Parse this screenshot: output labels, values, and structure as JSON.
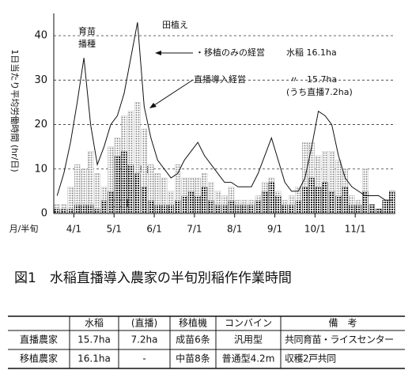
{
  "chart_data": {
    "type": "bar",
    "y_label": "1日当たり平均労働時間 (hr/日)",
    "x_label": "月/半旬",
    "categories": [
      null,
      null,
      null,
      "4/1",
      null,
      null,
      null,
      null,
      null,
      "5/1",
      null,
      null,
      null,
      null,
      null,
      "6/1",
      null,
      null,
      null,
      null,
      null,
      "7/1",
      null,
      null,
      null,
      null,
      null,
      "8/1",
      null,
      null,
      null,
      null,
      null,
      "9/1",
      null,
      null,
      null,
      null,
      null,
      "10/1",
      null,
      null,
      null,
      null,
      null,
      "11/1",
      null,
      null,
      null,
      null,
      null
    ],
    "series": [
      {
        "name": "直播",
        "color": "#222222",
        "values": [
          1,
          1,
          1,
          2,
          2,
          2,
          1,
          3,
          5,
          13,
          14,
          11,
          9,
          6,
          3,
          2,
          2,
          2,
          3,
          4,
          5,
          4,
          6,
          3,
          2,
          2,
          3,
          2,
          2,
          2,
          3,
          5,
          7,
          4,
          2,
          2,
          3,
          6,
          8,
          6,
          7,
          5,
          4,
          6,
          2,
          2,
          5,
          2,
          1,
          3,
          5
        ]
      },
      {
        "name": "移植",
        "color": "#bdbdbd",
        "values": [
          1,
          1,
          5,
          9,
          8,
          12,
          8,
          3,
          10,
          4,
          8,
          12,
          16,
          13,
          8,
          7,
          6,
          3,
          8,
          4,
          3,
          4,
          3,
          4,
          3,
          2,
          3,
          1,
          1,
          1,
          1,
          2,
          1,
          1,
          1,
          2,
          3,
          10,
          8,
          7,
          7,
          9,
          8,
          4,
          2,
          1,
          5,
          0,
          0,
          0,
          0
        ]
      },
      {
        "name": "・移植のみの経営",
        "type": "line",
        "color": "#111111",
        "values": [
          4,
          9,
          16,
          25,
          35,
          20,
          11,
          15,
          20,
          22,
          27,
          35,
          43,
          24,
          17,
          12,
          10,
          8,
          9,
          12,
          14,
          16,
          13,
          11,
          9,
          7,
          7,
          6,
          6,
          6,
          9,
          13,
          17,
          12,
          7,
          5,
          5,
          8,
          15,
          23,
          22,
          20,
          13,
          8,
          6,
          5,
          4,
          4,
          4,
          3,
          3
        ]
      }
    ],
    "ylim": [
      0,
      45
    ],
    "yticks": [
      0,
      10,
      20,
      30,
      40
    ],
    "grid": true,
    "annotations": [
      "育苗",
      "播種",
      "田植え",
      "水稲 16.1ha",
      "直播導入経営",
      "〃　15.7ha",
      "(うち直播7.2ha)"
    ]
  },
  "caption": "図1　水稲直播導入農家の半旬別稲作作業時間",
  "table": {
    "header": [
      "水稲",
      "(直播)",
      "移植機",
      "コンバイン",
      "備　考"
    ],
    "rows": [
      [
        "直播農家",
        "15.7ha",
        "7.2ha",
        "成苗6条",
        "汎用型",
        "共同育苗・ライスセンター"
      ],
      [
        "移植農家",
        "16.1ha",
        "-",
        "中苗8条",
        "普通型4.2m",
        "収穫2戸共同"
      ]
    ]
  }
}
